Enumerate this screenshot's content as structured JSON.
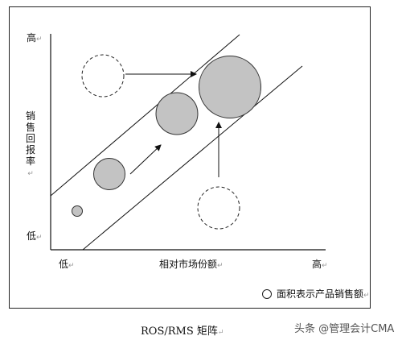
{
  "diagram": {
    "y_high": "高",
    "y_low": "低",
    "y_title": "销售回报率",
    "x_low": "低",
    "x_title": "相对市场份额",
    "x_high": "高",
    "return_mark": "↵",
    "legend": "面积表示产品销售额",
    "caption": "ROS/RMS 矩阵",
    "watermark": "头条 @管理会计CMA"
  }
}
